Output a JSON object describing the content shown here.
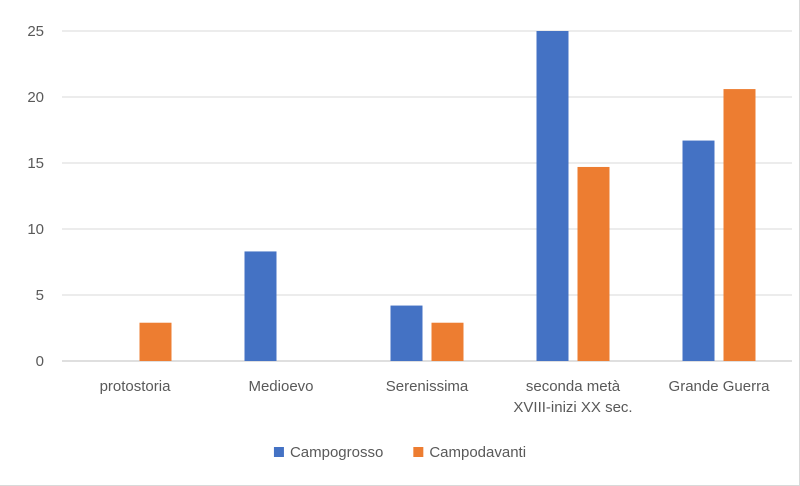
{
  "chart_data": {
    "type": "bar",
    "categories": [
      [
        "protostoria"
      ],
      [
        "Medioevo"
      ],
      [
        "Serenissima"
      ],
      [
        "seconda metà",
        "XVIII-inizi XX sec."
      ],
      [
        "Grande Guerra"
      ]
    ],
    "series": [
      {
        "name": "Campogrosso",
        "color": "#4472c4",
        "values": [
          0,
          8.3,
          4.2,
          25.0,
          16.7
        ]
      },
      {
        "name": "Campodavanti",
        "color": "#ed7d31",
        "values": [
          2.9,
          0,
          2.9,
          14.7,
          20.6
        ]
      }
    ],
    "yticks": [
      "0",
      "5",
      "10",
      "15",
      "20",
      "25"
    ],
    "ylim": [
      0,
      25
    ],
    "grid": true,
    "legend": "bottom",
    "title": "",
    "xlabel": "",
    "ylabel": ""
  }
}
